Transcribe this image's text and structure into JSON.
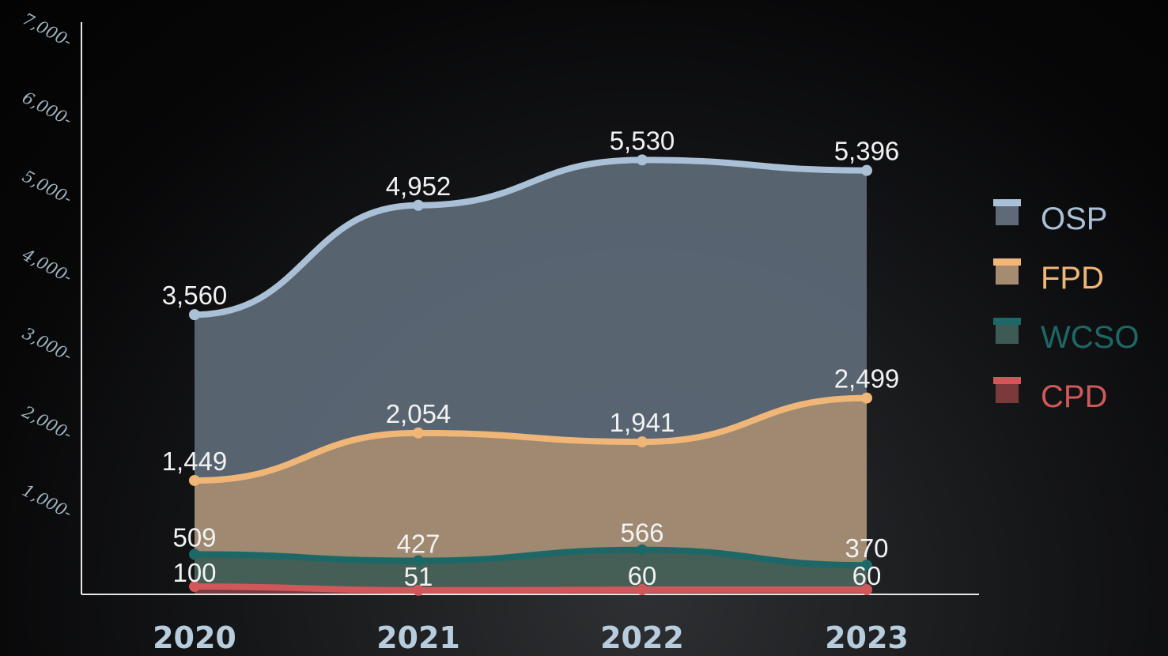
{
  "chart_data": {
    "type": "area",
    "categories": [
      "2020",
      "2021",
      "2022",
      "2023"
    ],
    "ylim": [
      0,
      7000
    ],
    "yticks": [
      {
        "value": 1000,
        "label": "1,000-"
      },
      {
        "value": 2000,
        "label": "2,000-"
      },
      {
        "value": 3000,
        "label": "3,000-"
      },
      {
        "value": 4000,
        "label": "4,000-"
      },
      {
        "value": 5000,
        "label": "5,000-"
      },
      {
        "value": 6000,
        "label": "6,000-"
      },
      {
        "value": 7000,
        "label": "7,000-"
      }
    ],
    "series": [
      {
        "name": "OSP",
        "values": [
          3560,
          4952,
          5530,
          5396
        ],
        "labels": [
          "3,560",
          "4,952",
          "5,530",
          "5,396"
        ],
        "line_color": "#a9c0d6",
        "fill_color": "#5e6a78"
      },
      {
        "name": "FPD",
        "values": [
          1449,
          2054,
          1941,
          2499
        ],
        "labels": [
          "1,449",
          "2,054",
          "1,941",
          "2,499"
        ],
        "line_color": "#f0b677",
        "fill_color": "#a58c70"
      },
      {
        "name": "WCSO",
        "values": [
          509,
          427,
          566,
          370
        ],
        "labels": [
          "509",
          "427",
          "566",
          "370"
        ],
        "line_color": "#1d6866",
        "fill_color": "#3d5a54"
      },
      {
        "name": "CPD",
        "values": [
          100,
          51,
          60,
          60
        ],
        "labels": [
          "100",
          "51",
          "60",
          "60"
        ],
        "line_color": "#d0585a",
        "fill_color": "#7a3a3c"
      }
    ],
    "legend_position": "right",
    "grid": false
  }
}
